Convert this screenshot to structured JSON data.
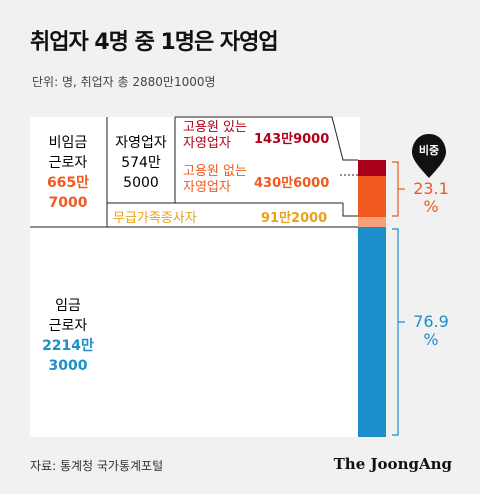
{
  "title": "취업자 4명 중 1명은 자영업",
  "unit": "단위: 명, 취업자 총 2880만1000명",
  "source": "자료: 통계청 국가통계포털",
  "logo": "The JoongAng",
  "nonwage": {
    "label_1": "비임금",
    "label_2": "근로자",
    "value_1": "665만",
    "value_2": "7000"
  },
  "selfemp": {
    "label": "자영업자",
    "value_1": "574만",
    "value_2": "5000"
  },
  "with_emp": {
    "label_1": "고용원 있는",
    "label_2": "자영업자",
    "value": "143만9000"
  },
  "without_emp": {
    "label_1": "고용원 없는",
    "label_2": "자영업자",
    "value": "430만6000"
  },
  "unpaid": {
    "label": "무급가족종사자",
    "value": "91만2000"
  },
  "wage": {
    "label_1": "임금",
    "label_2": "근로자",
    "value_1": "2214만",
    "value_2": "3000"
  },
  "share_badge": "비중",
  "pct_nonwage": {
    "value": "23.1",
    "unit": "%"
  },
  "pct_wage": {
    "value": "76.9",
    "unit": "%"
  },
  "colors": {
    "dark_red": "#a8001a",
    "orange": "#f05a1e",
    "peach": "#f7a07a",
    "blue": "#1c8ecb"
  }
}
